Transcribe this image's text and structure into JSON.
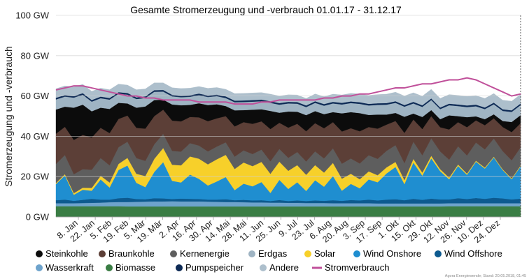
{
  "source_note": "Agora Energiewende; Stand: 20.05.2018, 01:45",
  "chart_data": {
    "type": "area",
    "stacked": true,
    "title": "Gesamte Stromerzeugung und -verbrauch 01.01.17 - 31.12.17",
    "xlabel": "",
    "ylabel": "Stromerzeugung und -verbrauch",
    "ylim": [
      0,
      100
    ],
    "y_ticks": [
      "0 GW",
      "20 GW",
      "40 GW",
      "60 GW",
      "80 GW",
      "100 GW"
    ],
    "x_ticks": [
      "8. Jan",
      "22. Jan",
      "5. Feb",
      "19. Feb",
      "5. Mär",
      "19. Mär",
      "2. Apr",
      "16. Apr",
      "30. Apr",
      "14. Mai",
      "28. Mai",
      "11. Jun",
      "25. Jun",
      "9. Jul",
      "23. Jul",
      "6. Aug",
      "20. Aug",
      "3. Sep",
      "17. Sep",
      "1. Okt",
      "15. Okt",
      "29. Okt",
      "12. Nov",
      "26. Nov",
      "10. Dez",
      "24. Dez"
    ],
    "grid": true,
    "legend_position": "bottom",
    "x_unit": "week",
    "series": [
      {
        "name": "Biomasse",
        "color": "#3a7d44",
        "values": [
          5.3,
          5.3,
          5.3,
          5.3,
          5.3,
          5.3,
          5.3,
          5.3,
          5.2,
          5.2,
          5.2,
          5.2,
          5.2,
          5.2,
          5.2,
          5.2,
          5.2,
          5.2,
          5.2,
          5.2,
          5.2,
          5.2,
          5.2,
          5.2,
          5.2,
          5.2,
          5.2,
          5.2,
          5.2,
          5.2,
          5.2,
          5.2,
          5.2,
          5.2,
          5.2,
          5.2,
          5.2,
          5.2,
          5.2,
          5.2,
          5.2,
          5.2,
          5.2,
          5.2,
          5.3,
          5.3,
          5.3,
          5.3,
          5.3,
          5.3,
          5.3,
          5.3,
          5.3
        ]
      },
      {
        "name": "Wasserkraft",
        "color": "#6ea3cc",
        "values": [
          1.5,
          1.5,
          1.5,
          1.6,
          1.7,
          1.8,
          2.0,
          2.1,
          2.2,
          2.3,
          2.4,
          2.5,
          2.5,
          2.6,
          2.5,
          2.5,
          2.5,
          2.4,
          2.3,
          2.2,
          2.2,
          2.1,
          2.0,
          2.0,
          1.9,
          1.9,
          1.8,
          1.8,
          1.7,
          1.7,
          1.7,
          1.6,
          1.6,
          1.6,
          1.6,
          1.6,
          1.5,
          1.5,
          1.5,
          1.5,
          1.5,
          1.5,
          1.5,
          1.5,
          1.5,
          1.5,
          1.5,
          1.5,
          1.5,
          1.5,
          1.5,
          1.5,
          1.5
        ]
      },
      {
        "name": "Wind Offshore",
        "color": "#0d5a8f",
        "values": [
          1.5,
          1.8,
          1.2,
          1.6,
          2.0,
          1.5,
          1.3,
          1.9,
          2.1,
          1.4,
          1.2,
          1.6,
          1.5,
          1.1,
          1.4,
          1.3,
          1.2,
          1.0,
          1.1,
          1.4,
          0.9,
          1.2,
          1.0,
          1.1,
          0.8,
          1.3,
          0.9,
          1.2,
          1.0,
          1.3,
          1.1,
          1.5,
          1.2,
          1.6,
          1.4,
          1.8,
          1.5,
          1.9,
          2.1,
          1.6,
          2.3,
          1.8,
          2.4,
          2.0,
          1.9,
          2.5,
          2.1,
          2.6,
          2.2,
          2.7,
          2.4,
          1.9,
          2.3
        ]
      },
      {
        "name": "Wind Onshore",
        "color": "#1f8ed0",
        "values": [
          8,
          12,
          3,
          5,
          4,
          10,
          6,
          14,
          16,
          8,
          6,
          13,
          18,
          9,
          8,
          12,
          10,
          7,
          9,
          11,
          5,
          8,
          7,
          9,
          4,
          10,
          6,
          9,
          5,
          10,
          7,
          12,
          5,
          8,
          6,
          10,
          9,
          13,
          16,
          8,
          18,
          12,
          20,
          14,
          10,
          16,
          12,
          18,
          15,
          20,
          14,
          10,
          16
        ]
      },
      {
        "name": "Solar",
        "color": "#f7d02a",
        "values": [
          0.5,
          0.6,
          0.8,
          1.0,
          1.4,
          1.8,
          2.5,
          3.0,
          3.8,
          4.5,
          5.5,
          6.5,
          7.0,
          8.0,
          8.5,
          9.0,
          10.0,
          10.5,
          11.0,
          11.0,
          10.5,
          10.5,
          10.0,
          10.0,
          9.5,
          9.0,
          9.0,
          8.5,
          8.0,
          7.5,
          7.0,
          6.5,
          6.0,
          5.0,
          4.5,
          4.0,
          3.5,
          3.0,
          2.5,
          2.0,
          1.8,
          1.5,
          1.2,
          1.0,
          0.8,
          0.7,
          0.6,
          0.5,
          0.5,
          0.4,
          0.4,
          0.4,
          0.4
        ]
      },
      {
        "name": "Kernenergie",
        "color": "#5e5e5e",
        "values": [
          9.5,
          9.5,
          9.4,
          9.2,
          9.0,
          8.8,
          8.5,
          8.3,
          8.0,
          7.8,
          7.5,
          7.2,
          7.0,
          6.9,
          6.8,
          6.6,
          6.5,
          6.4,
          6.3,
          6.2,
          6.1,
          6.0,
          6.0,
          6.1,
          6.2,
          6.3,
          6.4,
          6.5,
          6.6,
          6.8,
          7.0,
          7.2,
          7.4,
          7.6,
          7.8,
          8.0,
          8.1,
          8.2,
          8.3,
          8.4,
          8.5,
          8.6,
          8.7,
          8.8,
          8.9,
          9.0,
          9.0,
          9.0,
          9.0,
          9.0,
          9.0,
          9.0,
          9.0
        ]
      },
      {
        "name": "Braunkohle",
        "color": "#5c3f37",
        "values": [
          15,
          14,
          17,
          17,
          16,
          15,
          16,
          14,
          13,
          15,
          16,
          14,
          12,
          15,
          15,
          13,
          14,
          15,
          14,
          13,
          15,
          14,
          15,
          14,
          16,
          13,
          15,
          14,
          15,
          14,
          15,
          13,
          16,
          15,
          16,
          14,
          15,
          13,
          12,
          15,
          11,
          13,
          11,
          12,
          15,
          12,
          14,
          11,
          12,
          10,
          12,
          14,
          12
        ]
      },
      {
        "name": "Steinkohle",
        "color": "#0c0c0c",
        "values": [
          12,
          10,
          16,
          15,
          13,
          10,
          12,
          8,
          6,
          10,
          11,
          8,
          5,
          8,
          8,
          6,
          7,
          8,
          7,
          5,
          8,
          6,
          7,
          6,
          9,
          5,
          8,
          6,
          8,
          6,
          7,
          5,
          9,
          8,
          9,
          6,
          7,
          5,
          4,
          8,
          3,
          6,
          3,
          4,
          7,
          3,
          5,
          2,
          3,
          2,
          3,
          5,
          4
        ]
      },
      {
        "name": "Erdgas",
        "color": "#9fb4c3",
        "values": [
          5.0,
          5.0,
          5.0,
          4.9,
          4.8,
          4.7,
          4.6,
          4.5,
          4.4,
          4.3,
          4.2,
          4.1,
          4.0,
          4.0,
          4.0,
          4.0,
          4.0,
          4.0,
          4.0,
          4.0,
          4.0,
          4.0,
          4.0,
          4.0,
          4.0,
          4.0,
          4.0,
          4.0,
          4.0,
          4.1,
          4.2,
          4.3,
          4.4,
          4.5,
          4.6,
          4.7,
          4.8,
          4.9,
          5.0,
          5.0,
          5.0,
          5.0,
          5.0,
          5.0,
          5.0,
          5.0,
          5.0,
          5.0,
          5.0,
          5.0,
          5.0,
          5.0,
          5.0
        ]
      },
      {
        "name": "Pumpspeicher",
        "color": "#0d2a55",
        "values": [
          0.8,
          0.8,
          0.8,
          0.8,
          0.8,
          0.8,
          0.8,
          0.8,
          0.8,
          0.8,
          0.8,
          0.8,
          0.8,
          0.8,
          0.8,
          0.8,
          0.8,
          0.8,
          0.8,
          0.8,
          0.8,
          0.8,
          0.8,
          0.8,
          0.8,
          0.8,
          0.8,
          0.8,
          0.8,
          0.8,
          0.8,
          0.8,
          0.8,
          0.8,
          0.8,
          0.8,
          0.8,
          0.8,
          0.8,
          0.8,
          0.8,
          0.8,
          0.8,
          0.8,
          0.8,
          0.8,
          0.8,
          0.8,
          0.8,
          0.8,
          0.8,
          0.8,
          0.8
        ]
      },
      {
        "name": "Andere",
        "color": "#adbfcc",
        "values": [
          4.5,
          4.5,
          4.5,
          4.4,
          4.3,
          4.2,
          4.1,
          4.0,
          3.9,
          3.8,
          3.7,
          3.6,
          3.5,
          3.5,
          3.5,
          3.5,
          3.5,
          3.5,
          3.5,
          3.5,
          3.5,
          3.5,
          3.5,
          3.5,
          3.5,
          3.5,
          3.5,
          3.5,
          3.5,
          3.6,
          3.7,
          3.8,
          3.9,
          4.0,
          4.1,
          4.2,
          4.3,
          4.4,
          4.5,
          4.5,
          4.5,
          4.5,
          4.5,
          4.5,
          4.5,
          4.5,
          4.5,
          4.5,
          4.5,
          4.5,
          4.5,
          4.5,
          4.5
        ]
      }
    ],
    "line_series": [
      {
        "name": "Stromverbrauch",
        "color": "#c0509a",
        "values": [
          63,
          64,
          65,
          65,
          64,
          63,
          62,
          61,
          60,
          60,
          59,
          59,
          58,
          58,
          58,
          58,
          57,
          57,
          57,
          57,
          56,
          56,
          56,
          57,
          57,
          58,
          58,
          58,
          58,
          58,
          59,
          59,
          60,
          60,
          61,
          61,
          62,
          63,
          64,
          64,
          65,
          66,
          66,
          67,
          68,
          68,
          69,
          68,
          66,
          64,
          62,
          60,
          61
        ]
      }
    ]
  },
  "legend": [
    {
      "label": "Steinkohle",
      "color": "#0c0c0c"
    },
    {
      "label": "Braunkohle",
      "color": "#5c3f37"
    },
    {
      "label": "Kernenergie",
      "color": "#5e5e5e"
    },
    {
      "label": "Erdgas",
      "color": "#9fb4c3"
    },
    {
      "label": "Solar",
      "color": "#f7d02a"
    },
    {
      "label": "Wind Onshore",
      "color": "#1f8ed0"
    },
    {
      "label": "Wind Offshore",
      "color": "#0d5a8f"
    },
    {
      "label": "Wasserkraft",
      "color": "#6ea3cc"
    },
    {
      "label": "Biomasse",
      "color": "#3a7d44"
    },
    {
      "label": "Pumpspeicher",
      "color": "#0d2a55"
    },
    {
      "label": "Andere",
      "color": "#adbfcc"
    },
    {
      "label": "Stromverbrauch",
      "color": "#c0509a"
    }
  ]
}
